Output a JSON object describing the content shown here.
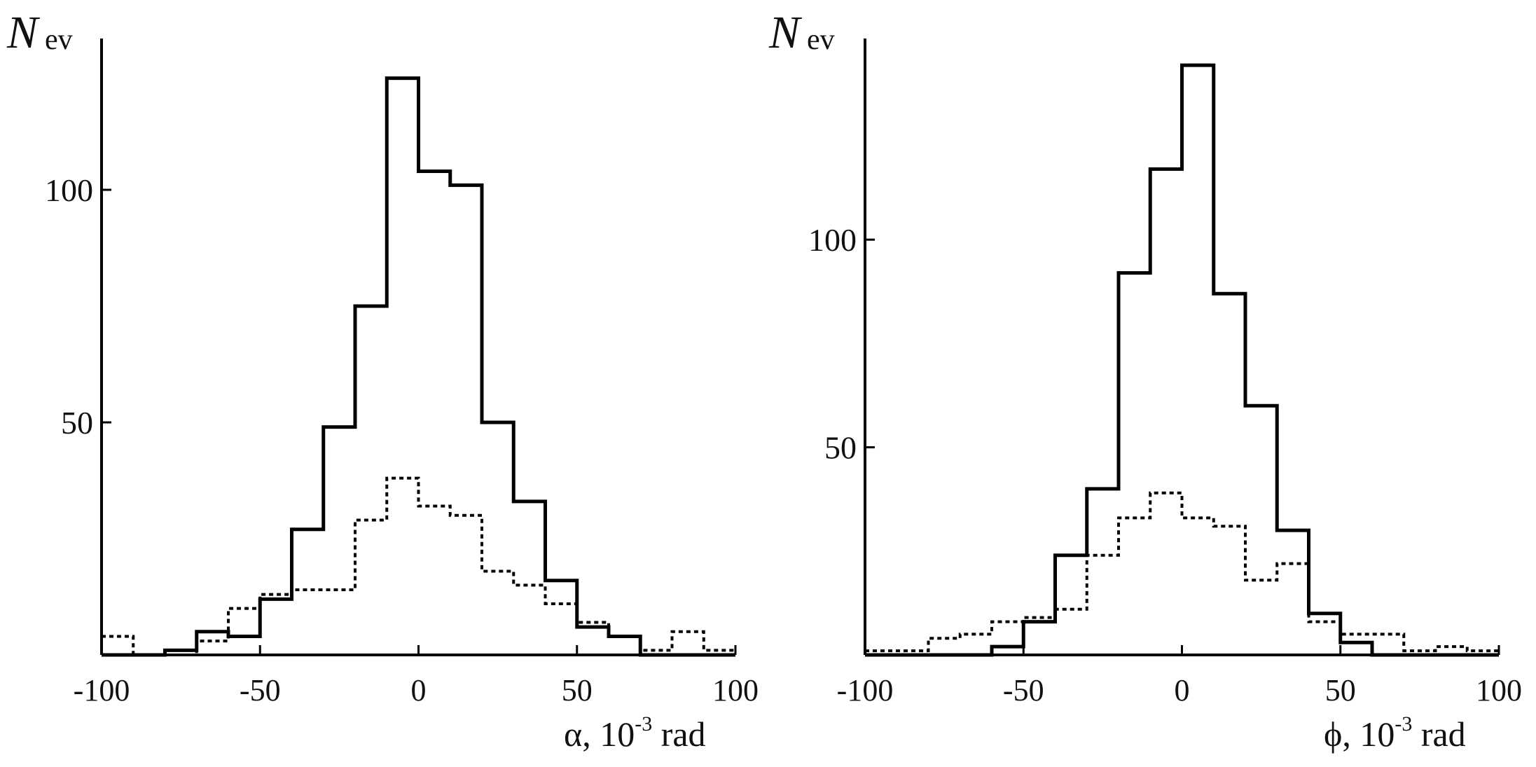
{
  "chart_data": [
    {
      "type": "histogram",
      "ylabel": "N",
      "ylabel_sub": "ev",
      "xlabel_symbol": "α",
      "xlabel_prefix": ", 10",
      "xlabel_exp": "-3",
      "xlabel_unit": " rad",
      "xlim": [
        -100,
        100
      ],
      "ylim": [
        0,
        125
      ],
      "xticks": [
        -100,
        -50,
        0,
        50,
        100
      ],
      "yticks": [
        50,
        100
      ],
      "bin_width": 10,
      "grid": false,
      "series": [
        {
          "style": "solid",
          "bins_x0": [
            -100,
            -90,
            -80,
            -70,
            -60,
            -50,
            -40,
            -30,
            -20,
            -10,
            0,
            10,
            20,
            30,
            40,
            50,
            60,
            70,
            80,
            90
          ],
          "values": [
            0,
            0,
            1,
            5,
            4,
            12,
            27,
            49,
            75,
            124,
            104,
            101,
            50,
            33,
            16,
            6,
            4,
            0,
            0,
            0
          ]
        },
        {
          "style": "dotted",
          "bins_x0": [
            -100,
            -90,
            -80,
            -70,
            -60,
            -50,
            -40,
            -30,
            -20,
            -10,
            0,
            10,
            20,
            30,
            40,
            50,
            60,
            70,
            80,
            90
          ],
          "values": [
            4,
            0,
            0,
            3,
            10,
            13,
            14,
            14,
            29,
            38,
            32,
            30,
            18,
            15,
            11,
            7,
            4,
            1,
            5,
            1
          ]
        }
      ]
    },
    {
      "type": "histogram",
      "ylabel": "N",
      "ylabel_sub": "ev",
      "xlabel_symbol": "ϕ",
      "xlabel_prefix": ", 10",
      "xlabel_exp": "-3",
      "xlabel_unit": " rad",
      "xlim": [
        -100,
        100
      ],
      "ylim": [
        0,
        140
      ],
      "xticks": [
        -100,
        -50,
        0,
        50,
        100
      ],
      "yticks": [
        50,
        100
      ],
      "bin_width": 10,
      "grid": false,
      "series": [
        {
          "style": "solid",
          "bins_x0": [
            -100,
            -90,
            -80,
            -70,
            -60,
            -50,
            -40,
            -30,
            -20,
            -10,
            0,
            10,
            20,
            30,
            40,
            50,
            60,
            70,
            80,
            90
          ],
          "values": [
            0,
            0,
            0,
            0,
            2,
            8,
            24,
            40,
            92,
            117,
            142,
            87,
            60,
            30,
            10,
            3,
            0,
            0,
            0,
            0
          ]
        },
        {
          "style": "dotted",
          "bins_x0": [
            -100,
            -90,
            -80,
            -70,
            -60,
            -50,
            -40,
            -30,
            -20,
            -10,
            0,
            10,
            20,
            30,
            40,
            50,
            60,
            70,
            80,
            90
          ],
          "values": [
            1,
            1,
            4,
            5,
            8,
            9,
            11,
            24,
            33,
            39,
            33,
            31,
            18,
            22,
            8,
            5,
            5,
            1,
            2,
            1
          ]
        }
      ]
    }
  ]
}
